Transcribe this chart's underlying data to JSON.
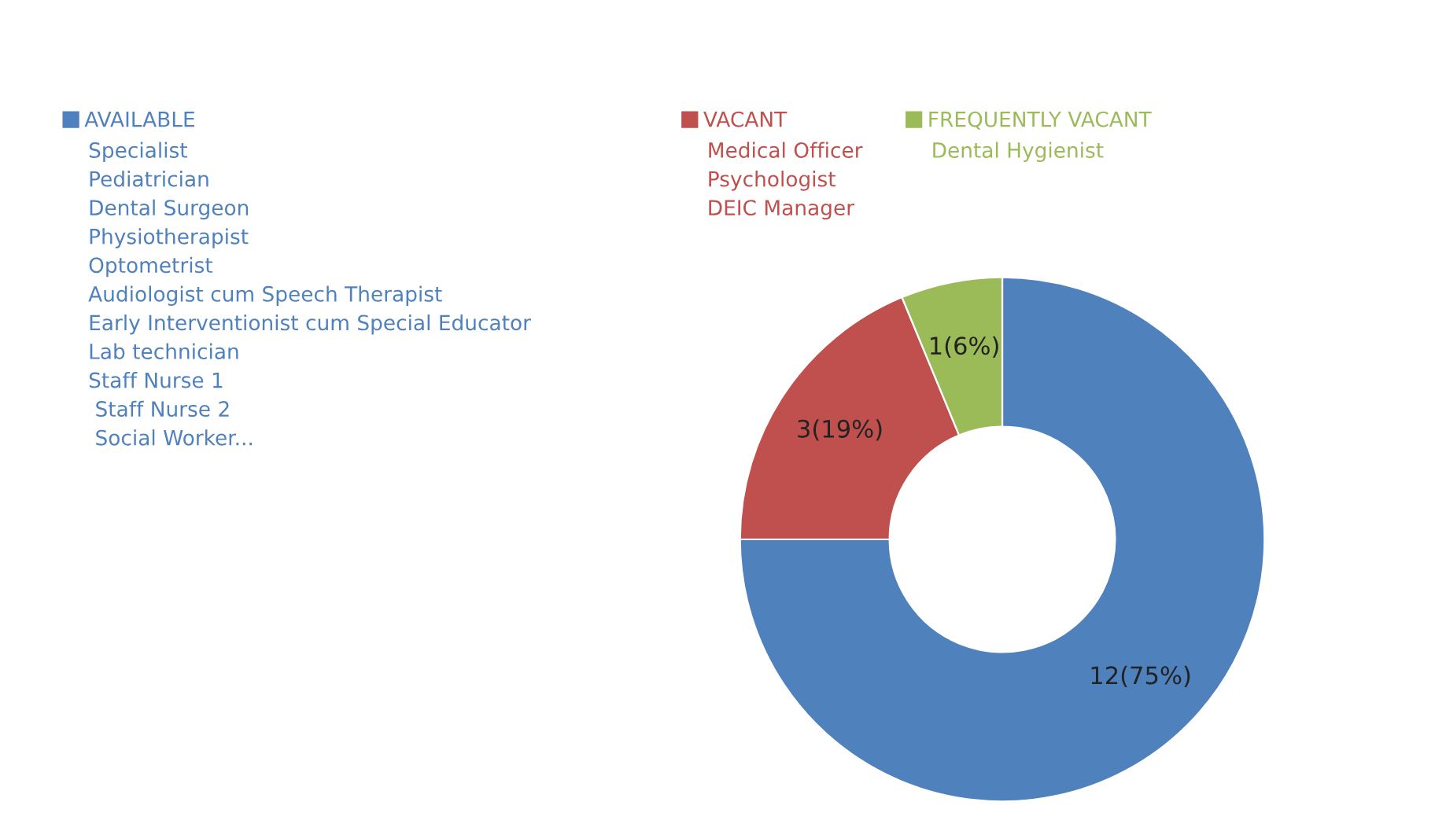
{
  "chart_data": {
    "type": "donut",
    "categories": [
      "AVAILABLE",
      "VACANT",
      "FREQUENTLY VACANT"
    ],
    "values": [
      12,
      3,
      1
    ],
    "colors": [
      "#4f81bd",
      "#c0504d",
      "#9bbb59"
    ],
    "value_labels": [
      "12(75%)",
      "3(19%)",
      "1(6%)"
    ],
    "annotations": [
      "Specialist\nPediatrician\nDental Surgeon\nPhysiotherapist\nOptometrist\nAudiologist cum Speech Therapist\nEarly Interventionist cum Special Educator\nLab technician\nStaff Nurse 1\n Staff Nurse 2\n Social Worker...",
      "Medical Officer\nPsychologist\nDEIC Manager",
      "Dental Hygienist"
    ],
    "legend": "top left"
  }
}
